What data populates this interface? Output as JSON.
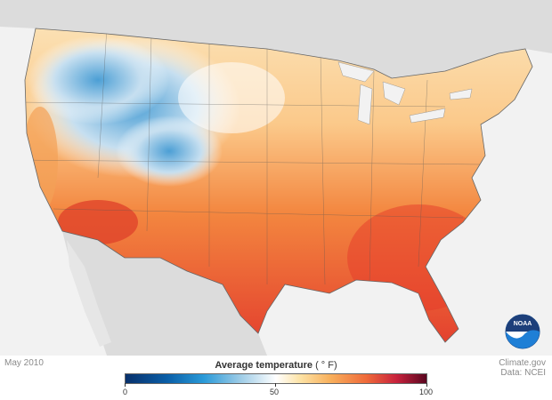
{
  "caption": {
    "date": "May 2010",
    "source_line1": "Climate.gov",
    "source_line2": "Data: NCEI"
  },
  "legend": {
    "title": "Average temperature",
    "unit": "( ° F)",
    "ticks": [
      "0",
      "50",
      "100"
    ],
    "min": 0,
    "max": 100
  },
  "logo": {
    "text": "NOAA"
  },
  "colors": {
    "ocean": "#f2f2f2",
    "land_outside": "#dcdcdc",
    "cold": "#2a86c8",
    "neutral": "#ffffff",
    "warm": "#f8b05c",
    "hot": "#e8452e"
  }
}
